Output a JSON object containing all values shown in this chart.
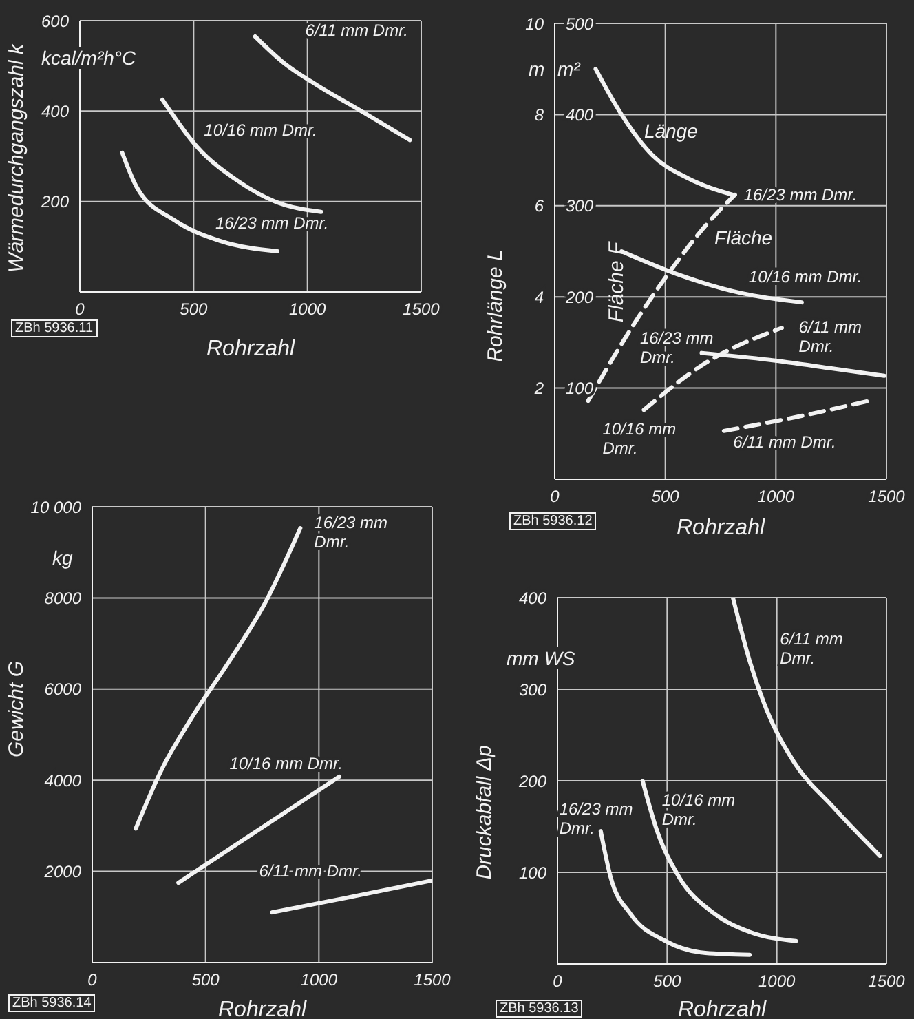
{
  "chart_data": [
    {
      "type": "line",
      "xlabel": "Rohrzahl",
      "ylabel": "Wärmedurchgangszahl k",
      "xlim": [
        0,
        1500
      ],
      "xticks": [
        0,
        500,
        1000,
        1500
      ],
      "ylim": [
        0,
        600
      ],
      "yticks": [
        200,
        400,
        600
      ],
      "grid": true,
      "annotations": [
        "kcal/m²h°C",
        "ZBh 5936.11"
      ],
      "series": [
        {
          "name": "6/11 mm Dmr.",
          "color": "#f2f2f2",
          "x": [
            770,
            900,
            1040,
            1220,
            1450
          ],
          "values": [
            565,
            505,
            458,
            405,
            336
          ]
        },
        {
          "name": "10/16 mm Dmr.",
          "color": "#f2f2f2",
          "x": [
            363,
            515,
            696,
            858,
            1060
          ],
          "values": [
            425,
            321,
            245,
            200,
            177
          ]
        },
        {
          "name": "16/23 mm Dmr.",
          "color": "#f2f2f2",
          "x": [
            186,
            252,
            414,
            616,
            868
          ],
          "values": [
            308,
            230,
            159,
            113,
            90
          ]
        }
      ]
    },
    {
      "type": "line",
      "xlabel": "Rohrzahl",
      "ylabel": "Rohrlänge L",
      "y2label": "Fläche F",
      "xlim": [
        0,
        1500
      ],
      "xticks": [
        0,
        500,
        1000,
        1500
      ],
      "ylim": [
        0,
        10
      ],
      "yticks": [
        2,
        4,
        6,
        8,
        10
      ],
      "y2lim": [
        0,
        500
      ],
      "y2ticks": [
        100,
        200,
        300,
        400,
        500
      ],
      "grid": true,
      "annotations": [
        "m",
        "m²",
        "ZBh 5936.12",
        {
          "text": "Länge",
          "x": 342,
          "y": 7.65
        },
        {
          "text": "Fläche",
          "x": 660,
          "y": 5.3
        }
      ],
      "series": [
        {
          "name": "16/23 mm Dmr.",
          "color": "#f2f2f2",
          "x": [
            185,
            302,
            443,
            604,
            805
          ],
          "values": [
            9.0,
            8.0,
            7.1,
            6.6,
            6.24
          ]
        },
        {
          "name": "16/23 mm Dmr.",
          "color": "#f2f2f2",
          "axis": "y2",
          "line_style": "dashed",
          "x": [
            151,
            342,
            524,
            685,
            815
          ],
          "values": [
            86,
            164,
            229,
            279,
            312
          ]
        },
        {
          "name": "10/16 mm Dmr.",
          "color": "#f2f2f2",
          "x": [
            302,
            564,
            846,
            1117
          ],
          "values": [
            5.0,
            4.48,
            4.08,
            3.88
          ]
        },
        {
          "name": "10/16 mm Dmr.",
          "color": "#f2f2f2",
          "axis": "y2",
          "line_style": "dashed",
          "x": [
            403,
            685,
            1027
          ],
          "values": [
            76,
            128,
            166
          ]
        },
        {
          "name": "6/11 mm Dmr.",
          "color": "#f2f2f2",
          "x": [
            664,
            966,
            1268,
            1490
          ],
          "values": [
            2.77,
            2.62,
            2.42,
            2.27
          ]
        },
        {
          "name": "6/11 mm Dmr.",
          "color": "#f2f2f2",
          "axis": "y2",
          "line_style": "dashed",
          "x": [
            765,
            1087,
            1440
          ],
          "values": [
            53,
            68,
            87
          ]
        }
      ]
    },
    {
      "type": "line",
      "xlabel": "Rohrzahl",
      "ylabel": "Gewicht G",
      "xlim": [
        0,
        1500
      ],
      "xticks": [
        0,
        500,
        1000,
        1500
      ],
      "ylim": [
        0,
        10000
      ],
      "yticks": [
        2000,
        4000,
        6000,
        8000,
        {
          "value": 10000,
          "label": "10 000"
        }
      ],
      "grid": true,
      "annotations": [
        "kg",
        "ZBh 5936.14"
      ],
      "series": [
        {
          "name": "16/23 mm Dmr.",
          "color": "#f2f2f2",
          "x": [
            192,
            303,
            444,
            606,
            767,
            918
          ],
          "values": [
            2940,
            4200,
            5410,
            6620,
            7930,
            9530
          ]
        },
        {
          "name": "10/16 mm Dmr.",
          "color": "#f2f2f2",
          "x": [
            380,
            727,
            1090
          ],
          "values": [
            1750,
            2890,
            4080
          ]
        },
        {
          "name": "6/11 mm Dmr.",
          "color": "#f2f2f2",
          "x": [
            793,
            1131,
            1500
          ],
          "values": [
            1100,
            1430,
            1800
          ]
        }
      ]
    },
    {
      "type": "line",
      "xlabel": "Rohrzahl",
      "ylabel": "Druckabfall Δp",
      "xlim": [
        0,
        1500
      ],
      "xticks": [
        0,
        500,
        1000,
        1500
      ],
      "ylim": [
        0,
        400
      ],
      "yticks": [
        100,
        200,
        300,
        400
      ],
      "grid": true,
      "annotations": [
        "mm WS",
        "ZBh 5936.13"
      ],
      "series": [
        {
          "name": "6/11 mm Dmr.",
          "color": "#f2f2f2",
          "x": [
            800,
            876,
            956,
            1077,
            1258,
            1470
          ],
          "values": [
            400,
            331,
            276,
            221,
            171,
            118
          ]
        },
        {
          "name": "10/16 mm Dmr.",
          "color": "#f2f2f2",
          "x": [
            388,
            453,
            554,
            715,
            876,
            1087
          ],
          "values": [
            200,
            146,
            95,
            55,
            35,
            25
          ]
        },
        {
          "name": "16/23 mm Dmr.",
          "color": "#f2f2f2",
          "x": [
            197,
            242,
            332,
            493,
            675,
            876
          ],
          "values": [
            145,
            95,
            55,
            25,
            12,
            10
          ]
        }
      ]
    }
  ]
}
